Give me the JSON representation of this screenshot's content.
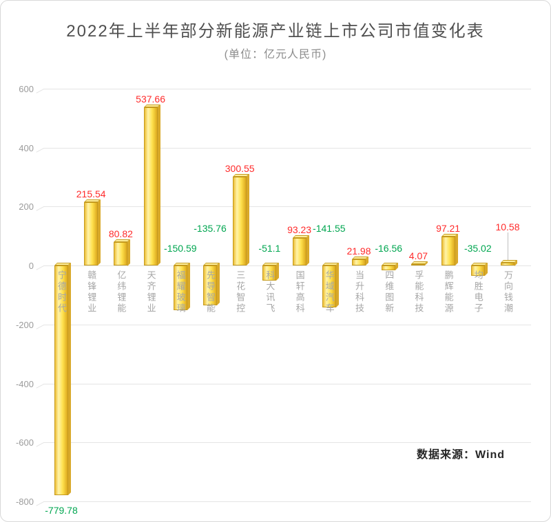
{
  "chart_data": {
    "type": "bar",
    "title": "2022年上半年部分新能源产业链上市公司市值变化表",
    "subtitle": "(单位：亿元人民币)",
    "source_note": "数据来源：Wind",
    "categories": [
      "宁德时代",
      "赣锋锂业",
      "亿纬锂能",
      "天齐锂业",
      "福耀玻璃",
      "先导智能",
      "三花智控",
      "科大讯飞",
      "国轩高科",
      "华域汽车",
      "当升科技",
      "四维图新",
      "孚能科技",
      "鹏辉能源",
      "均胜电子",
      "万向钱潮"
    ],
    "values": [
      -779.78,
      215.54,
      80.82,
      537.66,
      -150.59,
      -135.76,
      300.55,
      -51.1,
      93.23,
      -141.55,
      21.98,
      -16.56,
      4.07,
      97.21,
      -35.02,
      10.58
    ],
    "ylim": [
      -800,
      600
    ],
    "yticks": [
      600,
      400,
      200,
      0,
      -200,
      -400,
      -600,
      -800
    ],
    "grid": true,
    "legend": "none",
    "xlabel": "",
    "ylabel": "",
    "label_hints": {
      "0": "below",
      "5": "high",
      "9": "high",
      "15": "leader"
    },
    "colors": {
      "bar_fill": "#FFE14D",
      "bar_fill_light": "#FFF3A8",
      "bar_edge": "#C49A1E",
      "bar_side": "#D9A92A",
      "positive_label": "#FF2A2A",
      "negative_label": "#00A650",
      "grid_line": "#E4E4E4",
      "axis_text": "#9B9B9B",
      "category_text": "#A6A6A6",
      "title_text": "#4F4F4F",
      "subtitle_text": "#8C8C8C"
    }
  }
}
